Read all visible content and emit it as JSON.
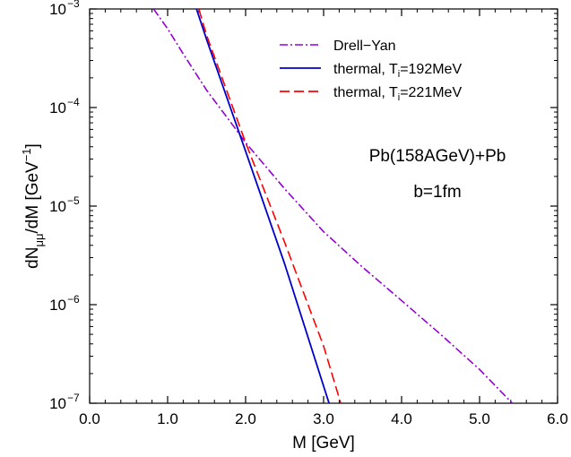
{
  "chart_data": {
    "type": "line",
    "xlabel": "M [GeV]",
    "ylabel": {
      "parts": [
        "dN",
        "μμ",
        "/dM [GeV",
        "−1",
        "]"
      ]
    },
    "xlim": [
      0.0,
      6.0
    ],
    "ylim": [
      1e-07,
      0.001
    ],
    "y_scale": "log",
    "x_ticks": [
      {
        "value": 0.0,
        "label": "0.0"
      },
      {
        "value": 1.0,
        "label": "1.0"
      },
      {
        "value": 2.0,
        "label": "2.0"
      },
      {
        "value": 3.0,
        "label": "3.0"
      },
      {
        "value": 4.0,
        "label": "4.0"
      },
      {
        "value": 5.0,
        "label": "5.0"
      },
      {
        "value": 6.0,
        "label": "6.0"
      }
    ],
    "y_ticks": [
      {
        "value": 1e-07,
        "base": "10",
        "exp": "−7"
      },
      {
        "value": 1e-06,
        "base": "10",
        "exp": "−6"
      },
      {
        "value": 1e-05,
        "base": "10",
        "exp": "−5"
      },
      {
        "value": 0.0001,
        "base": "10",
        "exp": "−4"
      },
      {
        "value": 0.001,
        "base": "10",
        "exp": "−3"
      }
    ],
    "series": [
      {
        "name": "Drell−Yan",
        "legend_parts": {
          "text": "Drell−Yan"
        },
        "color": "#9400d3",
        "dash": "dashdot",
        "x": [
          0.82,
          1.0,
          1.2,
          1.5,
          1.85,
          2.0,
          2.5,
          3.0,
          3.5,
          4.0,
          4.5,
          5.0,
          5.42
        ],
        "y": [
          0.001,
          0.00063,
          0.00035,
          0.00015,
          6.4e-05,
          4.4e-05,
          1.5e-05,
          5.5e-06,
          2.4e-06,
          1.1e-06,
          5e-07,
          2.2e-07,
          1e-07
        ]
      },
      {
        "name": "thermal, Ti=192MeV",
        "legend_parts": {
          "text": "thermal, T",
          "sub": "i",
          "after": "=192MeV"
        },
        "color": "#0000cd",
        "dash": "solid",
        "x": [
          1.37,
          1.5,
          2.0,
          2.5,
          3.07
        ],
        "y": [
          0.001,
          0.00049,
          3.6e-05,
          2.6e-06,
          1e-07
        ]
      },
      {
        "name": "thermal, Ti=221MeV",
        "legend_parts": {
          "text": "thermal, T",
          "sub": "i",
          "after": "=221MeV"
        },
        "color": "#ff0000",
        "dash": "dashed",
        "x": [
          1.4,
          1.5,
          2.0,
          2.5,
          3.0,
          3.22
        ],
        "y": [
          0.001,
          0.00054,
          4.4e-05,
          4.3e-06,
          3.8e-07,
          1e-07
        ]
      }
    ],
    "annotations": [
      "Pb(158AGeV)+Pb",
      "b=1fm"
    ],
    "legend_position": "top-right"
  }
}
